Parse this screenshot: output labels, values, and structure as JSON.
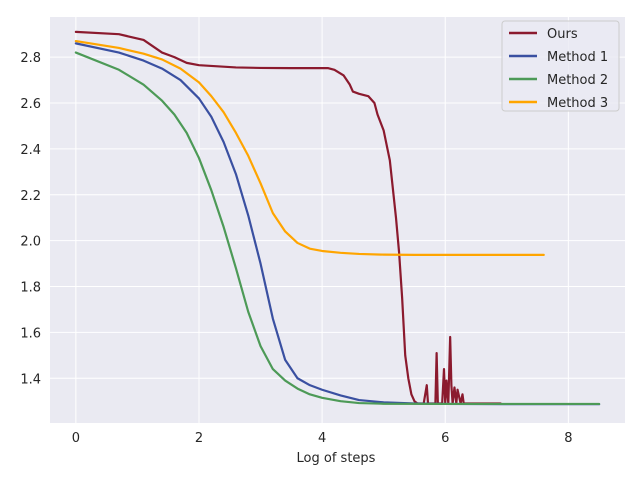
{
  "chart_data": {
    "type": "line",
    "title": "",
    "xlabel": "Log of steps",
    "ylabel": "",
    "xlim": [
      -0.42,
      8.92
    ],
    "ylim": [
      1.205,
      2.975
    ],
    "xticks": [
      0,
      2,
      4,
      6,
      8
    ],
    "yticks": [
      1.4,
      1.6,
      1.8,
      2.0,
      2.2,
      2.4,
      2.6,
      2.8
    ],
    "grid": true,
    "background": "#eaeaf2",
    "legend_position": "top-right",
    "series": [
      {
        "name": "Ours",
        "color": "#8b1a2e",
        "x": [
          0,
          0.7,
          1.1,
          1.4,
          1.6,
          1.8,
          2.0,
          2.3,
          2.6,
          3.0,
          3.5,
          4.1,
          4.2,
          4.35,
          4.45,
          4.5,
          4.6,
          4.75,
          4.85,
          4.9,
          5.0,
          5.1,
          5.2,
          5.25,
          5.3,
          5.35,
          5.4,
          5.45,
          5.5,
          5.55,
          5.6,
          5.65,
          5.7,
          5.72,
          5.74,
          5.8,
          5.84,
          5.86,
          5.88,
          5.9,
          5.95,
          5.98,
          6.0,
          6.02,
          6.05,
          6.08,
          6.1,
          6.12,
          6.15,
          6.18,
          6.2,
          6.25,
          6.28,
          6.3,
          6.35,
          6.5,
          6.9
        ],
        "y": [
          2.91,
          2.9,
          2.875,
          2.82,
          2.8,
          2.775,
          2.765,
          2.76,
          2.755,
          2.753,
          2.752,
          2.752,
          2.745,
          2.72,
          2.68,
          2.65,
          2.64,
          2.63,
          2.6,
          2.55,
          2.48,
          2.35,
          2.1,
          1.95,
          1.75,
          1.5,
          1.4,
          1.33,
          1.3,
          1.29,
          1.29,
          1.29,
          1.37,
          1.29,
          1.29,
          1.29,
          1.29,
          1.51,
          1.29,
          1.29,
          1.29,
          1.44,
          1.29,
          1.39,
          1.29,
          1.58,
          1.37,
          1.29,
          1.36,
          1.29,
          1.35,
          1.29,
          1.33,
          1.29,
          1.29,
          1.29,
          1.29
        ]
      },
      {
        "name": "Method 1",
        "color": "#3a50a1",
        "x": [
          0,
          0.7,
          1.1,
          1.4,
          1.7,
          2.0,
          2.2,
          2.4,
          2.6,
          2.8,
          3.0,
          3.2,
          3.4,
          3.6,
          3.8,
          4.0,
          4.3,
          4.6,
          5.0,
          5.5,
          6.0,
          7.0,
          8.5
        ],
        "y": [
          2.86,
          2.82,
          2.785,
          2.75,
          2.7,
          2.62,
          2.54,
          2.43,
          2.29,
          2.11,
          1.9,
          1.66,
          1.48,
          1.4,
          1.37,
          1.35,
          1.325,
          1.305,
          1.295,
          1.29,
          1.288,
          1.287,
          1.287
        ]
      },
      {
        "name": "Method 2",
        "color": "#4d9a57",
        "x": [
          0,
          0.7,
          1.1,
          1.4,
          1.6,
          1.8,
          2.0,
          2.2,
          2.4,
          2.6,
          2.8,
          3.0,
          3.2,
          3.4,
          3.6,
          3.8,
          4.0,
          4.3,
          4.6,
          5.0,
          6.0,
          8.5
        ],
        "y": [
          2.82,
          2.745,
          2.68,
          2.61,
          2.55,
          2.47,
          2.36,
          2.22,
          2.06,
          1.88,
          1.69,
          1.54,
          1.44,
          1.39,
          1.355,
          1.33,
          1.315,
          1.3,
          1.292,
          1.289,
          1.288,
          1.288
        ]
      },
      {
        "name": "Method 3",
        "color": "#ffa500",
        "x": [
          0,
          0.7,
          1.1,
          1.4,
          1.7,
          2.0,
          2.2,
          2.4,
          2.6,
          2.8,
          3.0,
          3.2,
          3.4,
          3.6,
          3.8,
          4.0,
          4.3,
          4.6,
          5.0,
          5.5,
          6.0,
          7.0,
          7.6
        ],
        "y": [
          2.87,
          2.84,
          2.815,
          2.79,
          2.75,
          2.69,
          2.63,
          2.56,
          2.47,
          2.37,
          2.25,
          2.12,
          2.04,
          1.99,
          1.965,
          1.955,
          1.947,
          1.942,
          1.939,
          1.938,
          1.938,
          1.938,
          1.938
        ]
      }
    ]
  }
}
